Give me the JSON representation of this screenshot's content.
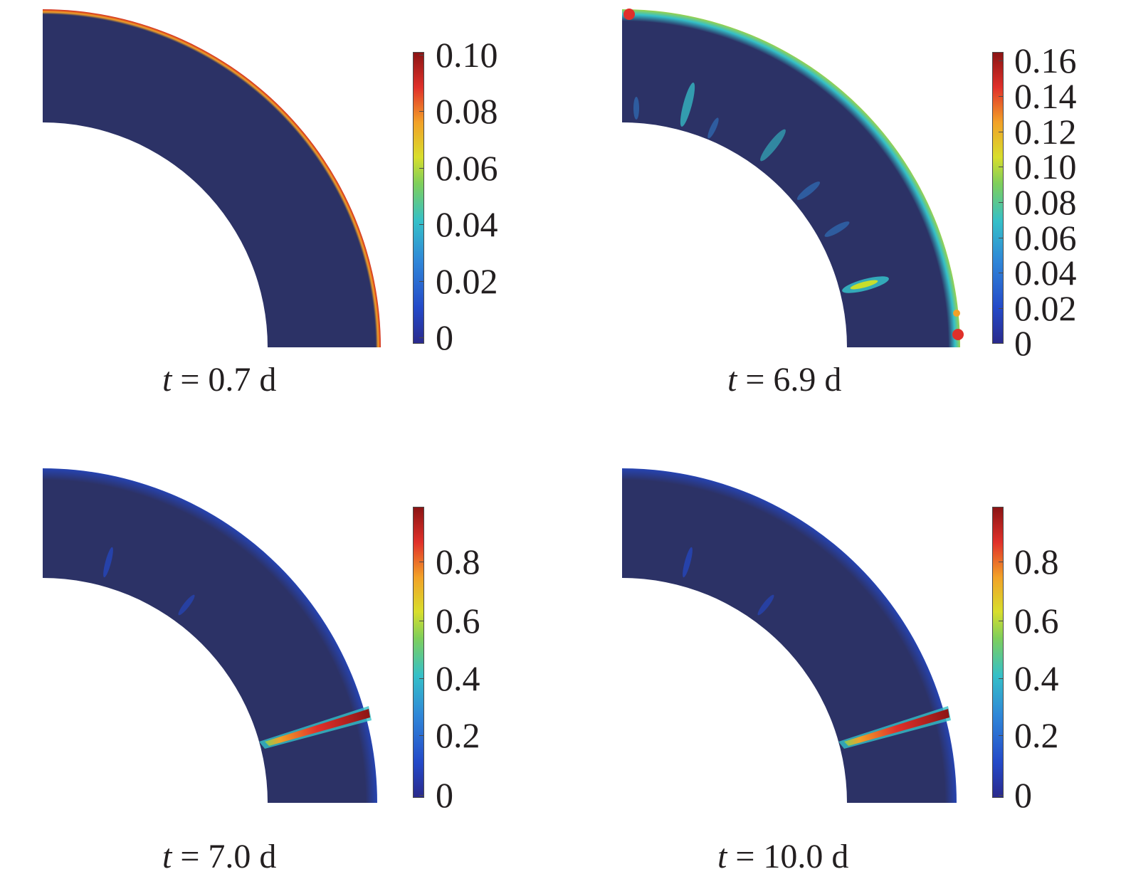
{
  "panels": [
    {
      "caption_var": "t",
      "caption_rest": " = 0.7 d",
      "colorbar_ticks": [
        "0.10",
        "0.08",
        "0.06",
        "0.04",
        "0.02",
        "0"
      ]
    },
    {
      "caption_var": "t",
      "caption_rest": " = 6.9 d",
      "colorbar_ticks": [
        "0.16",
        "0.14",
        "0.12",
        "0.10",
        "0.08",
        "0.06",
        "0.04",
        "0.02",
        "0"
      ]
    },
    {
      "caption_var": "t",
      "caption_rest": " = 7.0 d",
      "colorbar_ticks": [
        "0.8",
        "0.6",
        "0.4",
        "0.2",
        "0"
      ]
    },
    {
      "caption_var": "t",
      "caption_rest": " = 10.0 d",
      "colorbar_ticks": [
        "0.8",
        "0.6",
        "0.4",
        "0.2",
        "0"
      ]
    }
  ],
  "colors": {
    "background_field": "#2c3266",
    "low": "#2449c8",
    "mid": "#35c0c8",
    "high": "#e0302a",
    "max": "#8b1414"
  }
}
